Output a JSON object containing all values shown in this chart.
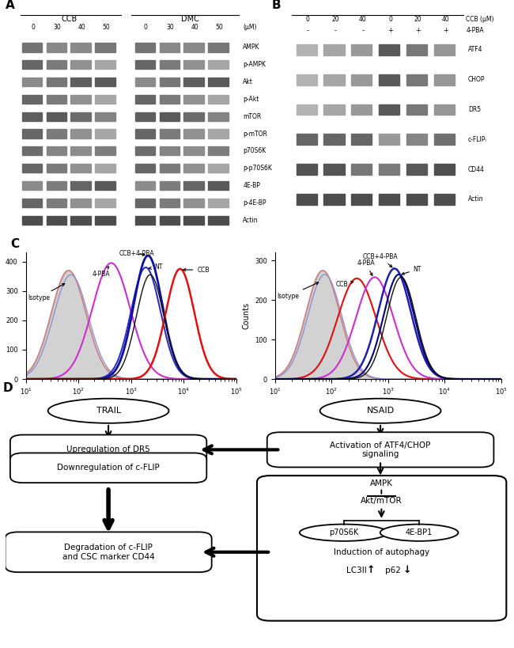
{
  "panel_A": {
    "title_CCB": "CCB",
    "title_DMC": "DMC",
    "unit": "(μM)",
    "bands": [
      "AMPK",
      "p-AMPK",
      "Akt",
      "p-Akt",
      "mTOR",
      "p-mTOR",
      "p70S6K",
      "p-p70S6K",
      "4E-BP",
      "p-4E-BP",
      "Actin"
    ],
    "n_lanes_per_group": 4
  },
  "panel_B": {
    "cols": [
      "0",
      "20",
      "40",
      "0",
      "20",
      "40"
    ],
    "row1_label": "CCB (μM)",
    "row2_vals": [
      "-",
      "-",
      "-",
      "+",
      "+",
      "+"
    ],
    "row2_label": "4-PBA",
    "bands": [
      "ATF4",
      "CHOP",
      "DR5",
      "c-FLIPₗ",
      "CD44",
      "Actin"
    ]
  },
  "bg_color": "#ffffff"
}
